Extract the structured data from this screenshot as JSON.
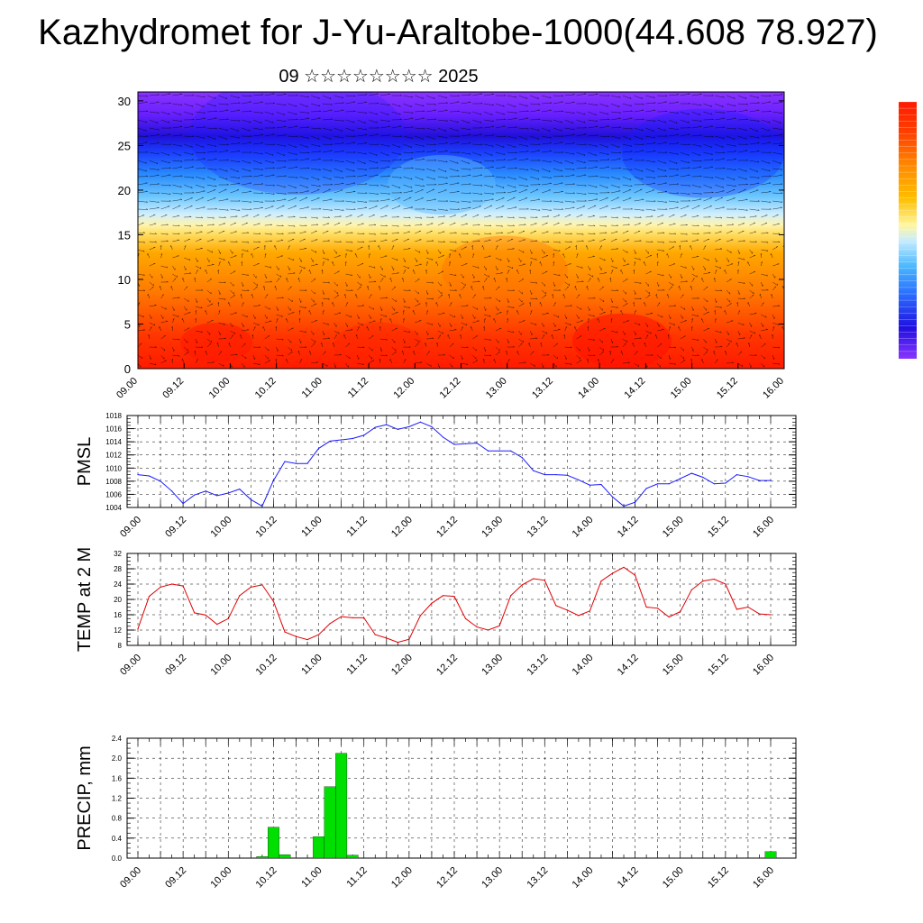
{
  "page": {
    "title": "Kazhydromet for J-Yu-Araltobe-1000(44.608 78.927)",
    "subtitle": "09 ☆☆☆☆☆☆☆☆ 2025"
  },
  "time_labels": [
    "09.00",
    "09.12",
    "10.00",
    "10.12",
    "11.00",
    "11.12",
    "12.00",
    "12.12",
    "13.00",
    "13.12",
    "14.00",
    "14.12",
    "15.00",
    "15.12",
    "16.00"
  ],
  "colors": {
    "pmsl": "#1a1aff",
    "temp": "#e00000",
    "precip": "#00e000"
  },
  "chart_data": [
    {
      "type": "heatmap",
      "name": "vertical-section",
      "title": "",
      "ylabel": "",
      "ylim": [
        0,
        31
      ],
      "yticks": [
        0,
        5,
        10,
        15,
        20,
        25,
        30
      ],
      "x": [
        "09.00",
        "09.12",
        "10.00",
        "10.12",
        "11.00",
        "11.12",
        "12.00",
        "12.12",
        "13.00",
        "13.12",
        "14.00",
        "14.12",
        "15.00",
        "15.12",
        "16.00"
      ],
      "colorbar": [
        "#ff0000",
        "#ff3a00",
        "#ff6e00",
        "#ff9900",
        "#ffc200",
        "#ffe34a",
        "#fff7a0",
        "#c8ecff",
        "#7ed4ff",
        "#31aaff",
        "#1060ff",
        "#2020e0",
        "#5a20ff",
        "#8a30ff"
      ],
      "overlay": "wind vectors"
    },
    {
      "type": "line",
      "name": "pmsl",
      "ylabel": "PMSL",
      "ylim": [
        1004,
        1018
      ],
      "yticks": [
        1004,
        1006,
        1008,
        1010,
        1012,
        1014,
        1016,
        1018
      ],
      "x": [
        "09.00",
        "09.03",
        "09.06",
        "09.09",
        "09.12",
        "09.15",
        "09.18",
        "09.21",
        "10.00",
        "10.03",
        "10.06",
        "10.09",
        "10.12",
        "10.15",
        "10.18",
        "10.21",
        "11.00",
        "11.03",
        "11.06",
        "11.09",
        "11.12",
        "11.15",
        "11.18",
        "11.21",
        "12.00",
        "12.03",
        "12.06",
        "12.09",
        "12.12",
        "12.15",
        "12.18",
        "12.21",
        "13.00",
        "13.03",
        "13.06",
        "13.09",
        "13.12",
        "13.15",
        "13.18",
        "13.21",
        "14.00",
        "14.03",
        "14.06",
        "14.09",
        "14.12",
        "14.15",
        "14.18",
        "14.21",
        "15.00",
        "15.03",
        "15.06",
        "15.09",
        "15.12",
        "15.15",
        "15.18",
        "15.21",
        "16.00"
      ],
      "values": [
        1009,
        1008.8,
        1008,
        1006.5,
        1004.6,
        1005.9,
        1006.5,
        1005.8,
        1006.2,
        1006.8,
        1005.2,
        1004.2,
        1008.1,
        1011,
        1010.7,
        1010.7,
        1013,
        1014.1,
        1014.3,
        1014.5,
        1015,
        1016.2,
        1016.6,
        1015.9,
        1016.3,
        1017,
        1016.3,
        1014.7,
        1013.6,
        1013.7,
        1013.8,
        1012.6,
        1012.6,
        1012.6,
        1011.6,
        1009.6,
        1009,
        1009,
        1008.9,
        1008.2,
        1007.4,
        1007.5,
        1005.6,
        1004.2,
        1004.8,
        1006.9,
        1007.6,
        1007.6,
        1008.4,
        1009.2,
        1008.6,
        1007.6,
        1007.7,
        1009,
        1008.7,
        1008.1,
        1008.1
      ]
    },
    {
      "type": "line",
      "name": "temp",
      "ylabel": "TEMP at 2 M",
      "ylim": [
        8,
        32
      ],
      "yticks": [
        8,
        12,
        16,
        20,
        24,
        28,
        32
      ],
      "x": [
        "09.00",
        "09.03",
        "09.06",
        "09.09",
        "09.12",
        "09.15",
        "09.18",
        "09.21",
        "10.00",
        "10.03",
        "10.06",
        "10.09",
        "10.12",
        "10.15",
        "10.18",
        "10.21",
        "11.00",
        "11.03",
        "11.06",
        "11.09",
        "11.12",
        "11.15",
        "11.18",
        "11.21",
        "12.00",
        "12.03",
        "12.06",
        "12.09",
        "12.12",
        "12.15",
        "12.18",
        "12.21",
        "13.00",
        "13.03",
        "13.06",
        "13.09",
        "13.12",
        "13.15",
        "13.18",
        "13.21",
        "14.00",
        "14.03",
        "14.06",
        "14.09",
        "14.12",
        "14.15",
        "14.18",
        "14.21",
        "15.00",
        "15.03",
        "15.06",
        "15.09",
        "15.12",
        "15.15",
        "15.18",
        "15.21",
        "16.00"
      ],
      "values": [
        12.3,
        20.8,
        23.2,
        24,
        23.5,
        16.5,
        15.9,
        13.5,
        15,
        21,
        23.2,
        23.8,
        19.5,
        11.5,
        10.3,
        9.5,
        10.8,
        13.7,
        15.5,
        15.2,
        15.2,
        10.8,
        9.9,
        8.8,
        9.6,
        15.8,
        19,
        21,
        20.8,
        15,
        12.8,
        12,
        13.1,
        21,
        23.8,
        25.4,
        25,
        18.4,
        17.2,
        15.8,
        17,
        24.8,
        26.8,
        28.4,
        26.3,
        18,
        17.7,
        15.4,
        16.8,
        22.5,
        24.8,
        25.3,
        24,
        17.4,
        18,
        16.2,
        16
      ]
    },
    {
      "type": "bar",
      "name": "precip",
      "ylabel": "PRECIP, mm",
      "ylim": [
        0,
        2.4
      ],
      "yticks": [
        "0.0",
        "0.4",
        "0.8",
        "1.2",
        "1.6",
        "2.0",
        "2.4"
      ],
      "x": [
        "10.09",
        "10.12",
        "10.15",
        "11.00",
        "11.03",
        "11.06",
        "11.09",
        "16.00"
      ],
      "values": [
        0.03,
        0.62,
        0.07,
        0.43,
        1.43,
        2.1,
        0.06,
        0.13
      ]
    }
  ]
}
